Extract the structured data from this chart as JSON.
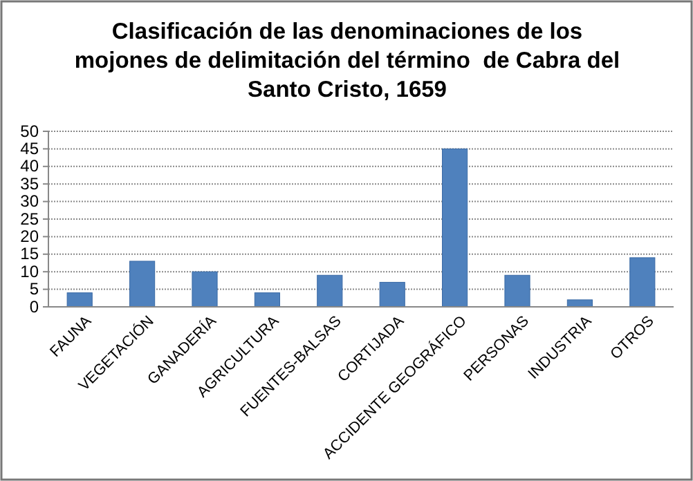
{
  "chart_data": {
    "type": "bar",
    "title": "Clasificación de las denominaciones de los mojones de delimitación del término  de Cabra del Santo Cristo, 1659",
    "categories": [
      "FAUNA",
      "VEGETACIÓN",
      "GANADERÍA",
      "AGRICULTURA",
      "FUENTES-BALSAS",
      "CORTIJADA",
      "ACCIDENTE GEOGRÁFICO",
      "PERSONAS",
      "INDUSTRIA",
      "OTROS"
    ],
    "values": [
      4,
      13,
      10,
      4,
      9,
      7,
      45,
      9,
      2,
      14
    ],
    "color": "#4f81bd",
    "ylim": [
      0,
      50
    ],
    "yticks": [
      0,
      5,
      10,
      15,
      20,
      25,
      30,
      35,
      40,
      45,
      50
    ],
    "grid": "y"
  }
}
